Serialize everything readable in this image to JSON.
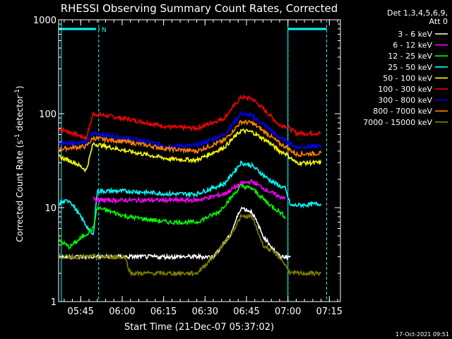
{
  "chart_data": {
    "type": "line",
    "title": "RHESSI Observing Summary Count Rates, Corrected",
    "xlabel": "Start Time (21-Dec-07 05:37:02)",
    "ylabel": "Corrected Count Rate (s-1 detector-1)",
    "ylabel_parts": {
      "pre": "Corrected Count Rate (s",
      "sup1": "-1",
      "mid": " detector",
      "sup2": "-1",
      "post": ")"
    },
    "y_scale": "log",
    "ylim": [
      1,
      1000
    ],
    "y_ticks": [
      {
        "v": 1,
        "label": "1"
      },
      {
        "v": 10,
        "label": "10"
      },
      {
        "v": 100,
        "label": "100"
      },
      {
        "v": 1000,
        "label": "1000"
      }
    ],
    "x_range_min": [
      0,
      102
    ],
    "x_ticks": [
      {
        "t": 8,
        "label": "05:45"
      },
      {
        "t": 23,
        "label": "06:00"
      },
      {
        "t": 38,
        "label": "06:15"
      },
      {
        "t": 53,
        "label": "06:30"
      },
      {
        "t": 68,
        "label": "06:45"
      },
      {
        "t": 83,
        "label": "07:00"
      },
      {
        "t": 98,
        "label": "07:15"
      }
    ],
    "legend": {
      "position": "right",
      "header": [
        "Det 1,3,4,5,6,9,",
        "Att 0"
      ],
      "entries": [
        {
          "label": "3 - 6 keV",
          "color": "#ffffff"
        },
        {
          "label": "6 - 12 keV",
          "color": "#ff00ff"
        },
        {
          "label": "12 - 25 keV",
          "color": "#00ff00"
        },
        {
          "label": "25 - 50 keV",
          "color": "#00ffff"
        },
        {
          "label": "50 - 100 keV",
          "color": "#ffff00"
        },
        {
          "label": "100 - 300 keV",
          "color": "#ff0000"
        },
        {
          "label": "300 - 800 keV",
          "color": "#0000ff"
        },
        {
          "label": "800 - 7000 keV",
          "color": "#ff8000"
        },
        {
          "label": "7000 - 15000 keV",
          "color": "#808000"
        }
      ]
    },
    "series": [
      {
        "name": "100 - 300 keV",
        "color": "#ff0000",
        "x": [
          0,
          10,
          12.5,
          25,
          40,
          50,
          60,
          66,
          70,
          76,
          80,
          82,
          86,
          95
        ],
        "y": [
          70,
          55,
          100,
          88,
          72,
          70,
          90,
          150,
          145,
          100,
          75,
          75,
          62,
          62
        ]
      },
      {
        "name": "300 - 800 keV",
        "color": "#0000ff",
        "x": [
          0,
          10,
          12.5,
          25,
          40,
          50,
          60,
          66,
          70,
          76,
          80,
          82,
          86,
          95
        ],
        "y": [
          48,
          50,
          62,
          55,
          45,
          46,
          60,
          100,
          95,
          70,
          55,
          52,
          44,
          45
        ]
      },
      {
        "name": "800 - 7000 keV",
        "color": "#ff8000",
        "x": [
          0,
          10,
          12.5,
          25,
          40,
          50,
          60,
          66,
          70,
          76,
          80,
          82,
          86,
          95
        ],
        "y": [
          42,
          45,
          55,
          50,
          42,
          40,
          52,
          82,
          80,
          60,
          48,
          45,
          37,
          38
        ]
      },
      {
        "name": "50 - 100 keV",
        "color": "#ffff00",
        "x": [
          0,
          6,
          10,
          12.5,
          25,
          40,
          50,
          60,
          66,
          70,
          76,
          80,
          82,
          86,
          95
        ],
        "y": [
          35,
          30,
          25,
          48,
          40,
          33,
          32,
          44,
          66,
          64,
          50,
          40,
          38,
          30,
          30
        ]
      },
      {
        "name": "25 - 50 keV",
        "color": "#00ffff",
        "x": [
          0,
          4,
          12.5,
          14,
          25,
          40,
          50,
          60,
          66,
          70,
          76,
          80,
          82,
          84,
          95
        ],
        "y": [
          11,
          12,
          5,
          15,
          15,
          14,
          14,
          18,
          30,
          28,
          20,
          17,
          16,
          10.5,
          11
        ]
      },
      {
        "name": "6 - 12 keV",
        "color": "#ff00ff",
        "x": [
          12.5,
          14,
          25,
          40,
          50,
          60,
          66,
          70,
          76,
          80,
          82
        ],
        "y": [
          13,
          12,
          12,
          12,
          12,
          14,
          18,
          19,
          15,
          13,
          13
        ]
      },
      {
        "name": "12 - 25 keV",
        "color": "#00ff00",
        "x": [
          0,
          4,
          12.5,
          14,
          25,
          40,
          50,
          58,
          66,
          70,
          76,
          80,
          82
        ],
        "y": [
          4.5,
          3.8,
          6,
          10,
          8,
          7,
          7,
          9,
          17,
          16,
          11,
          9,
          8
        ]
      },
      {
        "name": "3 - 6 keV",
        "color": "#ffffff",
        "x": [
          0,
          10,
          12.5,
          25,
          40,
          50,
          56,
          62,
          66,
          70,
          74,
          80,
          84
        ],
        "y": [
          3,
          3,
          3,
          3,
          3,
          3,
          3,
          5,
          10,
          9,
          5,
          3,
          3
        ]
      },
      {
        "name": "7000 - 15000 keV",
        "color": "#808000",
        "x": [
          0,
          10,
          12.5,
          24,
          26,
          40,
          50,
          56,
          62,
          66,
          70,
          74,
          80,
          84,
          86,
          95
        ],
        "y": [
          3,
          3,
          3,
          3,
          2,
          2,
          2,
          3,
          5,
          8,
          8,
          4,
          3,
          2,
          2,
          2
        ]
      }
    ],
    "attenuator_markers": [
      {
        "t0": 0,
        "t1": 13.5,
        "label": ""
      },
      {
        "t0": 14.5,
        "t1": 14.8,
        "label": "N"
      },
      {
        "t0": 83,
        "t1": 97,
        "label": ""
      }
    ]
  },
  "timestamp": "17-Oct-2021 09:51"
}
